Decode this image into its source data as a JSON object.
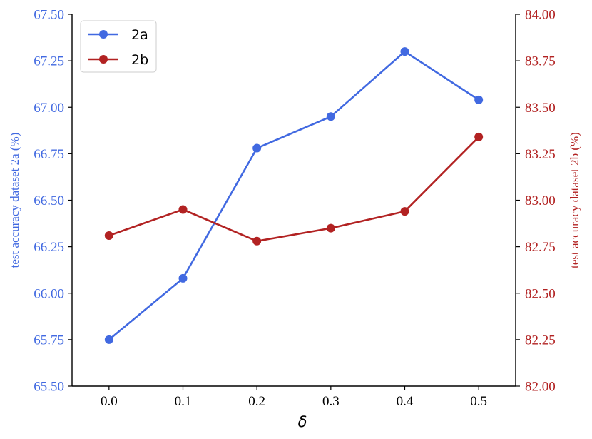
{
  "chart_data": {
    "type": "line",
    "xlabel": "δ",
    "x": [
      0.0,
      0.1,
      0.2,
      0.3,
      0.4,
      0.5
    ],
    "x_tick_labels": [
      "0.0",
      "0.1",
      "0.2",
      "0.3",
      "0.4",
      "0.5"
    ],
    "y_left": {
      "label": "test accuracy dataset 2a (%)",
      "ylim": [
        65.5,
        67.5
      ],
      "ticks": [
        65.5,
        65.75,
        66.0,
        66.25,
        66.5,
        66.75,
        67.0,
        67.25,
        67.5
      ],
      "tick_labels": [
        "65.50",
        "65.75",
        "66.00",
        "66.25",
        "66.50",
        "66.75",
        "67.00",
        "67.25",
        "67.50"
      ],
      "color": "#4169e1"
    },
    "y_right": {
      "label": "test accuracy dataset 2b (%)",
      "ylim": [
        82.0,
        84.0
      ],
      "ticks": [
        82.0,
        82.25,
        82.5,
        82.75,
        83.0,
        83.25,
        83.5,
        83.75,
        84.0
      ],
      "tick_labels": [
        "82.00",
        "82.25",
        "82.50",
        "82.75",
        "83.00",
        "83.25",
        "83.50",
        "83.75",
        "84.00"
      ],
      "color": "#b22222"
    },
    "series": [
      {
        "name": "2a",
        "axis": "left",
        "color": "#4169e1",
        "values": [
          65.75,
          66.08,
          66.78,
          66.95,
          67.3,
          67.04
        ]
      },
      {
        "name": "2b",
        "axis": "right",
        "color": "#b22222",
        "values": [
          82.81,
          82.95,
          82.78,
          82.85,
          82.94,
          83.34
        ]
      }
    ],
    "legend": {
      "placement": "top-left"
    },
    "grid": false
  }
}
